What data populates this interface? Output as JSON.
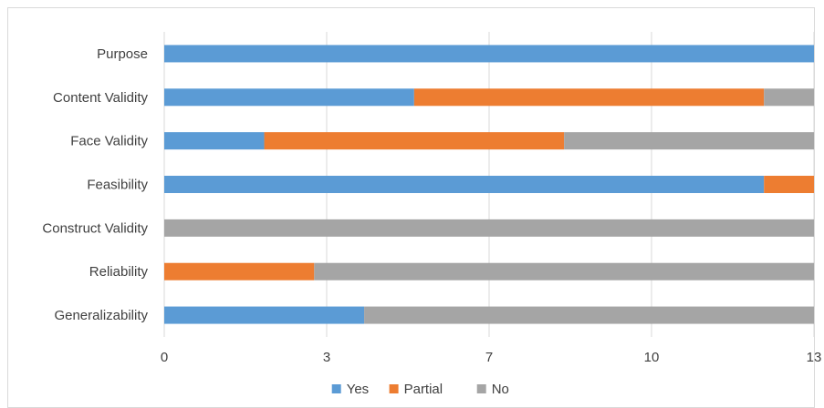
{
  "chart_data": {
    "type": "bar",
    "orientation": "horizontal",
    "stacked": true,
    "categories": [
      "Purpose",
      "Content Validity",
      "Face Validity",
      "Feasibility",
      "Construct Validity",
      "Reliability",
      "Generalizability"
    ],
    "series": [
      {
        "name": "Yes",
        "color": "#5b9bd5",
        "values": [
          13,
          5,
          2,
          12,
          0,
          0,
          4
        ]
      },
      {
        "name": "Partial",
        "color": "#ed7d31",
        "values": [
          0,
          7,
          6,
          1,
          0,
          3,
          0
        ]
      },
      {
        "name": "No",
        "color": "#a5a5a5",
        "values": [
          0,
          1,
          5,
          0,
          13,
          10,
          9
        ]
      }
    ],
    "xlim": [
      0,
      13
    ],
    "x_ticks": [
      0,
      3.25,
      6.5,
      9.75,
      13
    ],
    "x_tick_labels": [
      "0",
      "3",
      "7",
      "10",
      "13"
    ],
    "grid": "vertical",
    "legend_position": "bottom"
  }
}
